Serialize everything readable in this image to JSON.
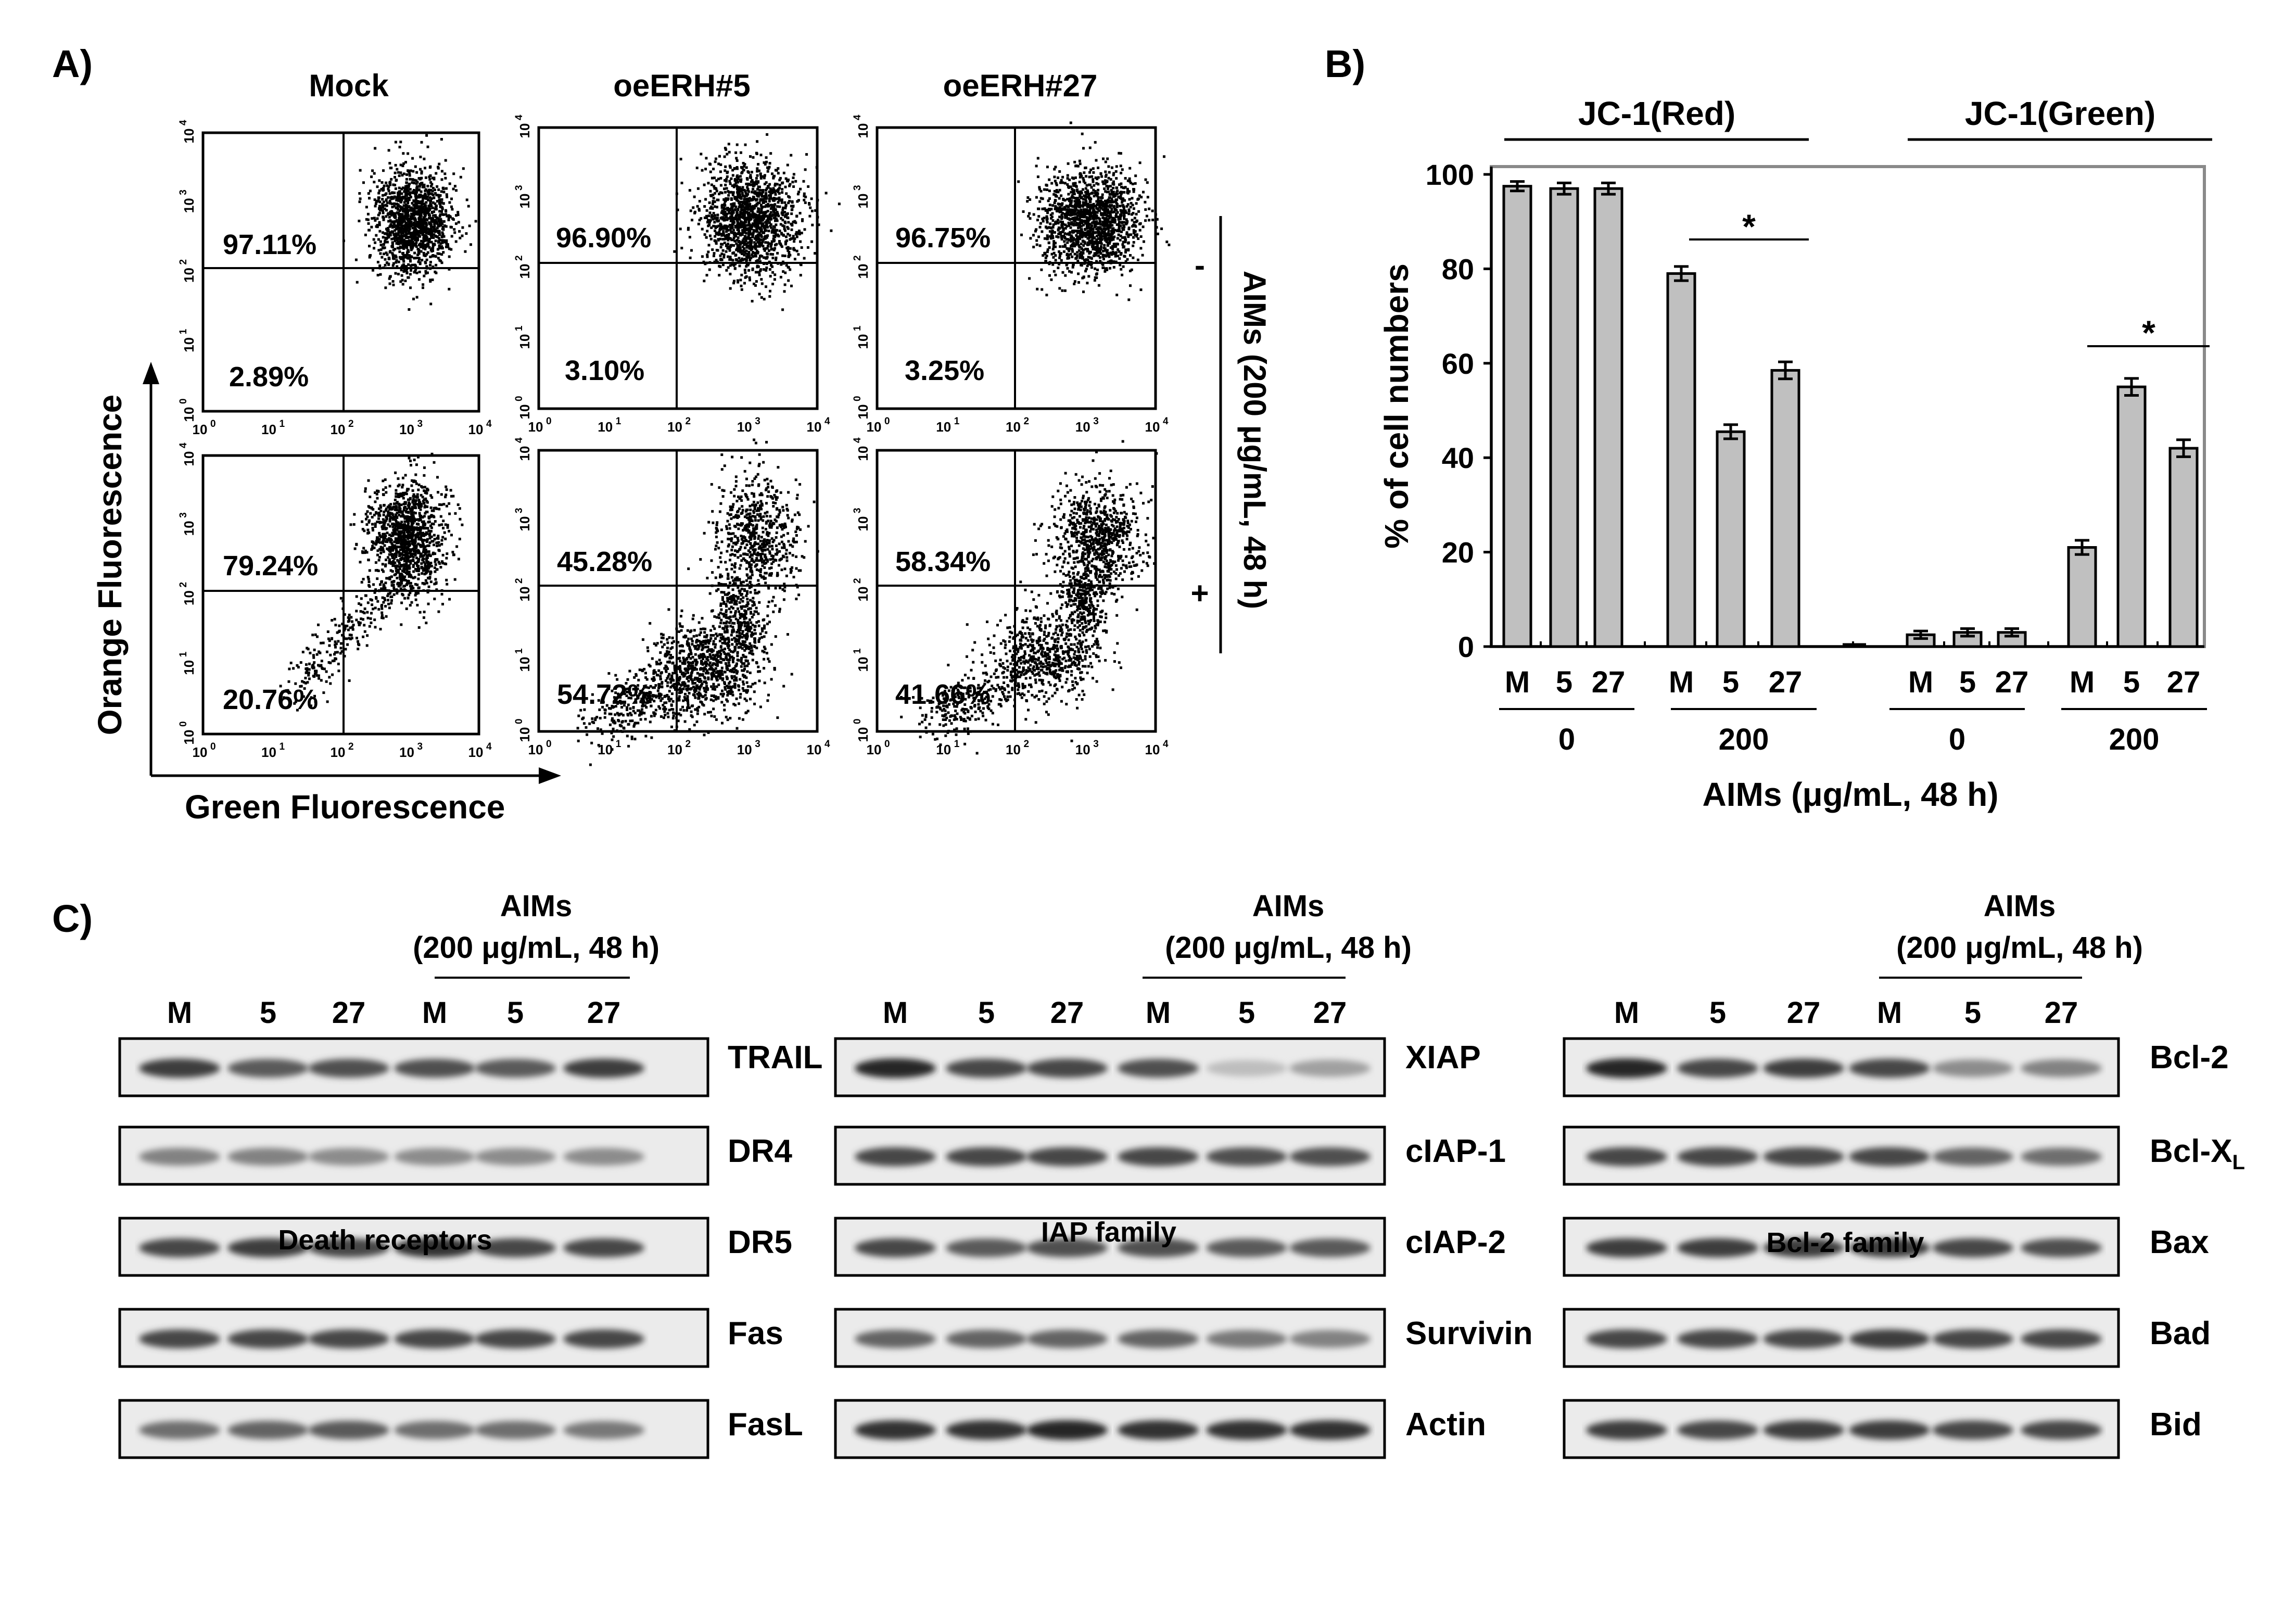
{
  "panel_labels": {
    "a": "A)",
    "b": "B)",
    "c": "C)"
  },
  "flow": {
    "columns": [
      "Mock",
      "oeERH#5",
      "oeERH#27"
    ],
    "row_signs": [
      "-",
      "+"
    ],
    "treatment_label": "AIMs (200 μg/mL, 48 h)",
    "xlabel": "Green Fluorescence",
    "ylabel": "Orange Fluorescence",
    "tick_base": "10",
    "tick_exps": [
      "0",
      "1",
      "2",
      "3",
      "4"
    ],
    "upper_pct": [
      "97.11%",
      "96.90%",
      "96.75%",
      "79.24%",
      "45.28%",
      "58.34%"
    ],
    "lower_pct": [
      "2.89%",
      "3.10%",
      "3.25%",
      "20.76%",
      "54.72%",
      "41.66%"
    ]
  },
  "chart_data": {
    "type": "bar",
    "ylabel": "% of cell numbers",
    "xlabel": "AIMs (μg/mL, 48 h)",
    "ylim": [
      0,
      100
    ],
    "yticks": [
      0,
      20,
      40,
      60,
      80,
      100
    ],
    "grid": false,
    "group_labels": [
      "JC-1(Red)",
      "JC-1(Green)"
    ],
    "dose_labels": [
      "0",
      "200",
      "0",
      "200"
    ],
    "categories": [
      "M",
      "5",
      "27",
      "M",
      "5",
      "27",
      "M",
      "5",
      "27",
      "M",
      "5",
      "27"
    ],
    "values": [
      97.5,
      97,
      97,
      79,
      45.5,
      58.5,
      2.5,
      3,
      3,
      21,
      55,
      42
    ],
    "errors": [
      1,
      1.2,
      1.2,
      1.5,
      1.5,
      1.8,
      0.8,
      0.8,
      0.8,
      1.5,
      1.8,
      1.8
    ],
    "significance": [
      "*",
      "*"
    ],
    "bar_color": "#c0c0c0"
  },
  "blots": {
    "aims_line1": "AIMs",
    "aims_line2": "(200 μg/mL, 48 h)",
    "lanes": [
      "M",
      "5",
      "27",
      "M",
      "5",
      "27"
    ],
    "groups": [
      {
        "title": "Death receptors",
        "labels": [
          "TRAIL",
          "DR4",
          "DR5",
          "Fas",
          "FasL"
        ]
      },
      {
        "title": "IAP family",
        "labels": [
          "XIAP",
          "cIAP-1",
          "cIAP-2",
          "Survivin",
          "Actin"
        ]
      },
      {
        "title": "Bcl-2 family",
        "labels": [
          "Bcl-2",
          "Bcl-X",
          "Bax",
          "Bad",
          "Bid"
        ],
        "subscript": "L"
      }
    ]
  }
}
